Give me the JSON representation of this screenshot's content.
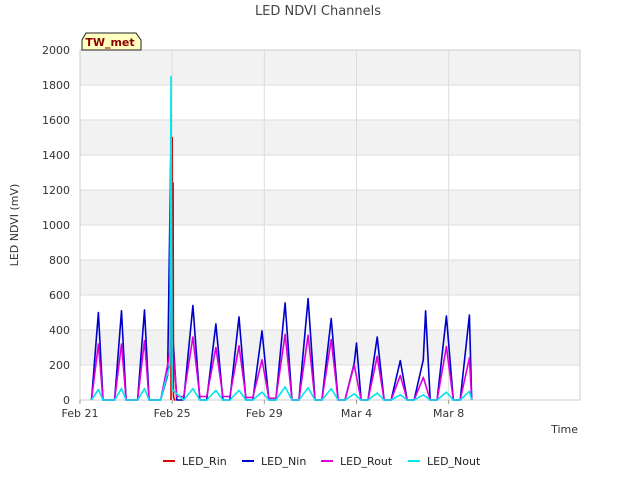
{
  "chart_data": {
    "type": "line",
    "title": "LED NDVI Channels",
    "xlabel": "Time",
    "ylabel": "LED NDVI (mV)",
    "site_badge": "TW_met",
    "xlim": [
      0,
      21.7
    ],
    "ylim": [
      0,
      2000
    ],
    "x_ticks": [
      {
        "x": 0,
        "label": "Feb 21"
      },
      {
        "x": 4,
        "label": "Feb 25"
      },
      {
        "x": 8,
        "label": "Feb 29"
      },
      {
        "x": 12,
        "label": "Mar 4"
      },
      {
        "x": 16,
        "label": "Mar 8"
      }
    ],
    "y_ticks": [
      0,
      200,
      400,
      600,
      800,
      1000,
      1200,
      1400,
      1600,
      1800,
      2000
    ],
    "legend_position": "bottom-center",
    "series_colors": {
      "LED_Rin": "#dd0000",
      "LED_Nin": "#0000cc",
      "LED_Rout": "#dd00dd",
      "LED_Nout": "#00e5ee"
    },
    "series": [
      {
        "name": "LED_Rin",
        "x": [
          3.95,
          3.96,
          4.0,
          4.02,
          4.04,
          4.06,
          4.1,
          4.15
        ],
        "values": [
          0,
          1300,
          1500,
          870,
          1240,
          20,
          0,
          0
        ]
      },
      {
        "name": "LED_Nin",
        "x": [
          0.5,
          0.8,
          1.0,
          1.5,
          1.8,
          2.0,
          2.5,
          2.8,
          3.0,
          3.5,
          3.8,
          3.95,
          4.0,
          4.2,
          4.5,
          4.9,
          5.2,
          5.5,
          5.9,
          6.2,
          6.5,
          6.9,
          7.2,
          7.5,
          7.9,
          8.2,
          8.5,
          8.9,
          9.2,
          9.5,
          9.9,
          10.2,
          10.5,
          10.9,
          11.2,
          11.5,
          11.9,
          12.0,
          12.2,
          12.5,
          12.9,
          13.2,
          13.5,
          13.9,
          14.2,
          14.5,
          14.9,
          15.0,
          15.2,
          15.5,
          15.9,
          16.2,
          16.5,
          16.9,
          17.0
        ],
        "values": [
          0,
          500,
          0,
          0,
          510,
          0,
          0,
          515,
          0,
          0,
          140,
          1490,
          430,
          0,
          0,
          540,
          0,
          0,
          435,
          0,
          0,
          475,
          0,
          0,
          395,
          0,
          0,
          555,
          0,
          0,
          580,
          0,
          0,
          465,
          0,
          0,
          210,
          325,
          0,
          0,
          360,
          0,
          0,
          225,
          0,
          0,
          230,
          510,
          0,
          0,
          480,
          0,
          0,
          485,
          0
        ]
      },
      {
        "name": "LED_Rout",
        "x": [
          0.5,
          0.8,
          1.0,
          1.5,
          1.8,
          2.0,
          2.5,
          2.8,
          3.0,
          3.5,
          3.8,
          4.0,
          4.2,
          4.5,
          4.9,
          5.2,
          5.5,
          5.9,
          6.2,
          6.5,
          6.9,
          7.2,
          7.5,
          7.9,
          8.2,
          8.5,
          8.9,
          9.2,
          9.5,
          9.9,
          10.2,
          10.5,
          10.9,
          11.2,
          11.5,
          11.9,
          12.2,
          12.5,
          12.9,
          13.2,
          13.5,
          13.9,
          14.2,
          14.5,
          14.9,
          15.2,
          15.5,
          15.9,
          16.2,
          16.5,
          16.9,
          17.0
        ],
        "values": [
          0,
          320,
          0,
          0,
          320,
          0,
          0,
          340,
          0,
          0,
          200,
          350,
          20,
          20,
          360,
          20,
          20,
          300,
          20,
          20,
          310,
          15,
          15,
          230,
          10,
          10,
          375,
          0,
          0,
          370,
          0,
          0,
          345,
          0,
          0,
          200,
          0,
          0,
          250,
          0,
          0,
          140,
          0,
          0,
          130,
          0,
          0,
          305,
          0,
          0,
          240,
          0
        ]
      },
      {
        "name": "LED_Nout",
        "x": [
          0.5,
          0.8,
          1.0,
          1.5,
          1.8,
          2.0,
          2.5,
          2.8,
          3.0,
          3.5,
          3.9,
          3.95,
          4.0,
          4.5,
          4.9,
          5.2,
          5.5,
          5.9,
          6.2,
          6.5,
          6.9,
          7.2,
          7.5,
          7.9,
          8.2,
          8.5,
          8.9,
          9.2,
          9.5,
          9.9,
          10.2,
          10.5,
          10.9,
          11.2,
          11.5,
          11.9,
          12.2,
          12.5,
          12.9,
          13.2,
          13.5,
          13.9,
          14.2,
          14.5,
          14.9,
          15.2,
          15.5,
          15.9,
          16.2,
          16.5,
          16.9,
          17.0
        ],
        "values": [
          0,
          60,
          0,
          0,
          65,
          0,
          0,
          65,
          0,
          0,
          200,
          1850,
          60,
          0,
          65,
          0,
          0,
          55,
          0,
          0,
          55,
          0,
          0,
          45,
          0,
          0,
          75,
          0,
          0,
          70,
          0,
          0,
          65,
          0,
          0,
          35,
          0,
          0,
          40,
          0,
          0,
          30,
          0,
          0,
          30,
          0,
          0,
          45,
          0,
          0,
          50,
          0
        ]
      }
    ]
  }
}
